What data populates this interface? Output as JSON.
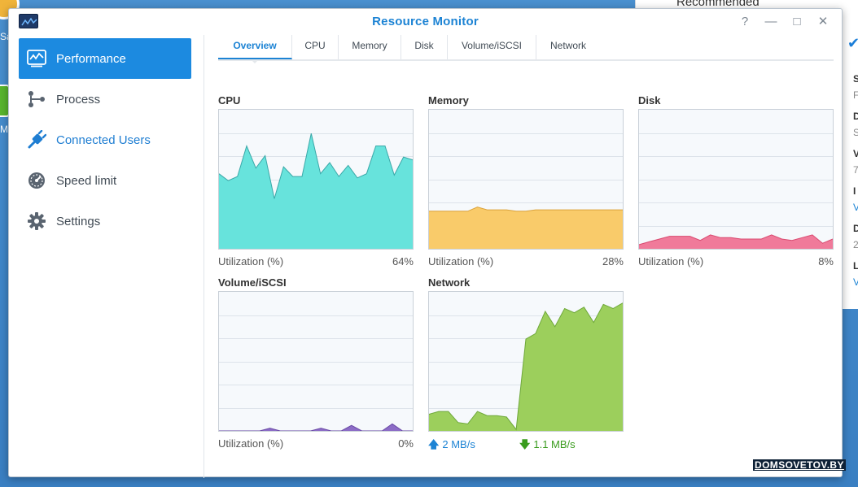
{
  "desktop": {
    "label_a": "Sa",
    "label_b": "M"
  },
  "background_window": {
    "heading": "Recommended",
    "side_letters": [
      "S",
      "F",
      "D",
      "S",
      "V",
      "7",
      "I",
      "V",
      "D",
      "2",
      "L",
      "V"
    ]
  },
  "window": {
    "title": "Resource Monitor",
    "help_label": "?",
    "minimize_label": "—",
    "maximize_label": "□",
    "close_label": "✕"
  },
  "sidebar": {
    "items": [
      {
        "label": "Performance",
        "icon": "performance-icon",
        "state": "active"
      },
      {
        "label": "Process",
        "icon": "process-icon",
        "state": "normal"
      },
      {
        "label": "Connected Users",
        "icon": "plug-icon",
        "state": "blue"
      },
      {
        "label": "Speed limit",
        "icon": "gauge-icon",
        "state": "normal"
      },
      {
        "label": "Settings",
        "icon": "gear-icon",
        "state": "normal"
      }
    ]
  },
  "tabs": [
    "Overview",
    "CPU",
    "Memory",
    "Disk",
    "Volume/iSCSI",
    "Network"
  ],
  "active_tab": "Overview",
  "panels": {
    "cpu": {
      "title": "CPU",
      "metric_label": "Utilization (%)",
      "value_label": "64%",
      "value": 64,
      "color": "#67e3dc",
      "stroke": "#3aa8a8",
      "series": [
        54,
        49,
        52,
        74,
        58,
        67,
        36,
        59,
        52,
        52,
        83,
        54,
        62,
        52,
        60,
        51,
        54,
        74,
        74,
        53,
        66,
        64
      ]
    },
    "memory": {
      "title": "Memory",
      "metric_label": "Utilization (%)",
      "value_label": "28%",
      "value": 28,
      "color": "#f9cb6a",
      "stroke": "#dba23a",
      "series": [
        27,
        27,
        27,
        27,
        27,
        30,
        28,
        28,
        28,
        27,
        27,
        28,
        28,
        28,
        28,
        28,
        28,
        28,
        28,
        28,
        28
      ]
    },
    "disk": {
      "title": "Disk",
      "metric_label": "Utilization (%)",
      "value_label": "8%",
      "value": 8,
      "color": "#f07a9a",
      "stroke": "#d94a70",
      "series": [
        3,
        5,
        7,
        9,
        9,
        9,
        6,
        10,
        8,
        8,
        7,
        7,
        7,
        10,
        7,
        6,
        8,
        10,
        4,
        7
      ]
    },
    "volume": {
      "title": "Volume/iSCSI",
      "metric_label": "Utilization (%)",
      "value_label": "0%",
      "value": 0,
      "color": "#8c6cc6",
      "stroke": "#6a4aa6",
      "series": [
        0,
        0,
        0,
        0,
        0,
        2,
        0,
        0,
        0,
        0,
        2,
        0,
        0,
        4,
        0,
        0,
        0,
        5,
        0,
        0
      ]
    },
    "network": {
      "title": "Network",
      "upload": "2 MB/s",
      "download": "1.1 MB/s",
      "color": "#9ccf5c",
      "stroke": "#6ea83a",
      "series": [
        12,
        14,
        14,
        6,
        5,
        14,
        11,
        11,
        10,
        1,
        66,
        70,
        86,
        75,
        88,
        85,
        89,
        78,
        91,
        88,
        92
      ]
    }
  },
  "watermark": "DOMSOVETOV.BY"
}
